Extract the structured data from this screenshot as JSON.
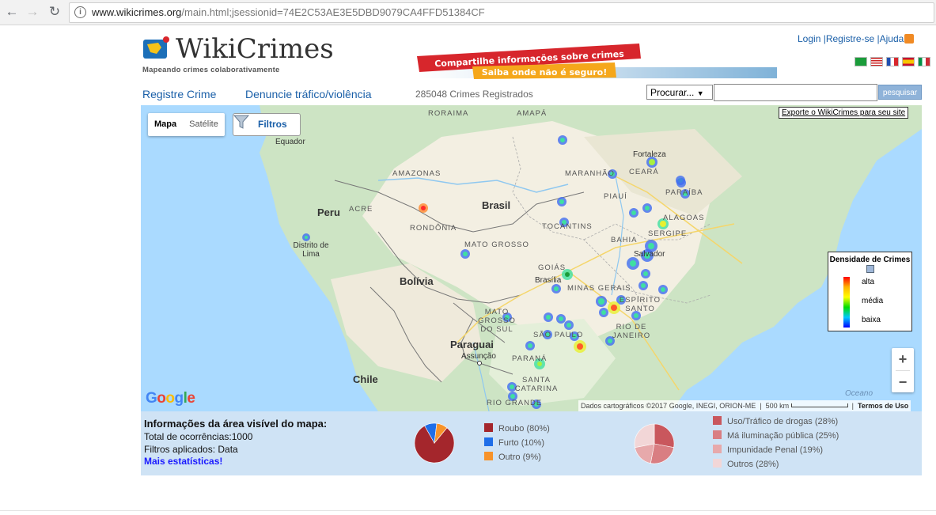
{
  "browser": {
    "url_host": "www.wikicrimes.org",
    "url_rest": "/main.html;jsessionid=74E2C53AE3E5DBD9079CA4FFD51384CF"
  },
  "header": {
    "logo_text": "WikiCrimes",
    "tagline": "Mapeando crimes colaborativamente",
    "links": [
      "Login",
      "Registre-se",
      "Ajuda"
    ],
    "banner_line1": "Compartilhe informações sobre crimes",
    "banner_line2": "Saiba onde não é seguro!",
    "flags": [
      "flag-brazil",
      "flag-usa",
      "flag-france",
      "flag-spain",
      "flag-italy"
    ]
  },
  "nav": {
    "register_crime": "Registre Crime",
    "report_trafficking": "Denuncie tráfico/violência",
    "count": "285048 Crimes Registrados",
    "search_select": "Procurar...",
    "search_value": "",
    "search_button": "pesquisar"
  },
  "map": {
    "type_map": "Mapa",
    "type_satellite": "Satélite",
    "filters_button": "Filtros",
    "export_link": "Exporte o WikiCrimes para seu site",
    "legend_title": "Densidade de Crimes",
    "legend_high": "alta",
    "legend_mid": "média",
    "legend_low": "baixa",
    "zoom_in": "+",
    "zoom_out": "−",
    "google": "Google",
    "attribution": "Dados cartográficos ©2017 Google, INEGI, ORION-ME",
    "scale": "500 km",
    "terms": "Termos de Uso",
    "labels": {
      "roraima": "RORAIMA",
      "amapa": "AMAPÁ",
      "equador": "Equador",
      "amazonas": "AMAZONAS",
      "maranhao": "MARANHÃO",
      "fortaleza": "Fortaleza",
      "ceara": "CEARÁ",
      "paraiba": "PARAÍBA",
      "piaui": "PIAUÍ",
      "brasil": "Brasil",
      "acre": "ACRE",
      "peru": "Peru",
      "rondonia": "RONDÔNIA",
      "tocantins": "TOCANTINS",
      "alagoas": "ALAGOAS",
      "sergipe": "SERGIPE",
      "bahia": "BAHIA",
      "lima": "Distrito de Lima",
      "mato_grosso": "MATO GROSSO",
      "salvador": "Salvador",
      "goias": "GOIÁS",
      "bolivia": "Bolívia",
      "brasilia": "Brasília",
      "minas": "MINAS GERAIS",
      "espirito": "ESPÍRITO SANTO",
      "mato_grosso_sul": "MATO GROSSO DO SUL",
      "sao_paulo": "SÃO PAULO",
      "rio": "RIO DE JANEIRO",
      "paraguai": "Paraguai",
      "assuncao": "Assunção",
      "parana": "PARANÁ",
      "chile": "Chile",
      "santa_catarina": "SANTA CATARINA",
      "rio_grande": "RIO GRANDE",
      "oceano": "Oceano"
    }
  },
  "info": {
    "title": "Informações da área visível do mapa:",
    "total": "Total de ocorrências:1000",
    "filters": "Filtros aplicados: Data",
    "more": "Mais estatísticas!",
    "chart1": [
      {
        "label": "Roubo (80%)",
        "value": 80,
        "color": "#a4262c"
      },
      {
        "label": "Furto (10%)",
        "value": 10,
        "color": "#1f6ee8"
      },
      {
        "label": "Outro (9%)",
        "value": 9,
        "color": "#f7932a"
      }
    ],
    "chart2": [
      {
        "label": "Uso/Tráfico de drogas (28%)",
        "value": 28,
        "color": "#c9575d"
      },
      {
        "label": "Má iluminação pública (25%)",
        "value": 25,
        "color": "#d97e82"
      },
      {
        "label": "Impunidade Penal (19%)",
        "value": 19,
        "color": "#e7a9ab"
      },
      {
        "label": "Outros (28%)",
        "value": 28,
        "color": "#f2d6d7"
      }
    ]
  }
}
